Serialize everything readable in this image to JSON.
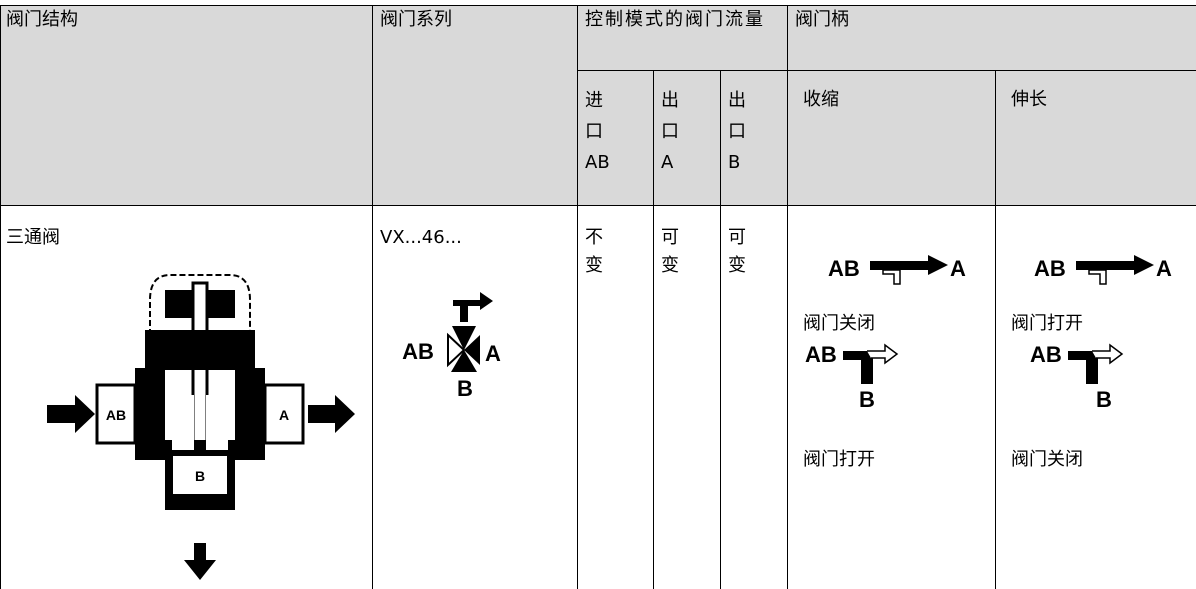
{
  "table": {
    "header": {
      "structure": "阀门结构",
      "series": "阀门系列",
      "flow": "控制模式的阀门流量",
      "stem": "阀门柄"
    },
    "subheader": {
      "inlet_ab": "进口AB",
      "outlet_a": "出口A",
      "outlet_b": "出口B",
      "retract": "收缩",
      "extend": "伸长"
    },
    "row": {
      "structure": {
        "text": "三通阀",
        "diagram_labels": [
          "AB",
          "A",
          "B"
        ]
      },
      "series": {
        "text": "VX...46...",
        "symbol_labels": [
          "AB",
          "A",
          "B"
        ]
      },
      "inlet_ab": "不变",
      "outlet_a": "可变",
      "outlet_b": "可变",
      "retract": {
        "icon1_labels": [
          "AB",
          "A"
        ],
        "state1": "阀门关闭",
        "icon2_labels": [
          "AB",
          "B"
        ],
        "state2": "阀门打开"
      },
      "extend": {
        "icon1_labels": [
          "AB",
          "A"
        ],
        "state1": "阀门打开",
        "icon2_labels": [
          "AB",
          "B"
        ],
        "state2": "阀门关闭"
      }
    }
  }
}
